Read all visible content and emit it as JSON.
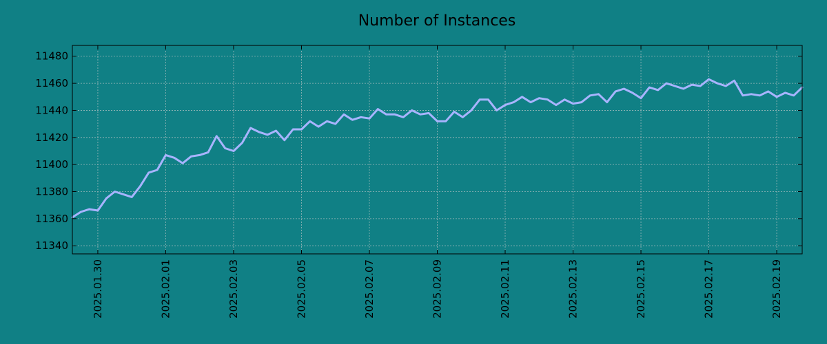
{
  "chart_data": {
    "type": "line",
    "title": "Number of Instances",
    "xlabel": "",
    "ylabel": "",
    "x_ticks": [
      "2025.01.30",
      "2025.02.01",
      "2025.02.03",
      "2025.02.05",
      "2025.02.07",
      "2025.02.09",
      "2025.02.11",
      "2025.02.13",
      "2025.02.15",
      "2025.02.17",
      "2025.02.19"
    ],
    "y_ticks": [
      11340,
      11360,
      11380,
      11400,
      11420,
      11440,
      11460,
      11480
    ],
    "xlim": [
      "2025.01.29 06:00",
      "2025.02.19 18:00"
    ],
    "ylim": [
      11334,
      11488
    ],
    "grid": true,
    "colors": {
      "background": "#108085",
      "line": "#a8b4ff"
    },
    "series": [
      {
        "x": [
          "2025.01.29 06:00",
          "2025.01.29 12:00",
          "2025.01.29 18:00",
          "2025.01.30 00:00",
          "2025.01.30 06:00",
          "2025.01.30 12:00",
          "2025.01.30 18:00",
          "2025.01.31 00:00",
          "2025.01.31 06:00",
          "2025.01.31 12:00",
          "2025.01.31 18:00",
          "2025.02.01 00:00",
          "2025.02.01 06:00",
          "2025.02.01 12:00",
          "2025.02.01 18:00",
          "2025.02.02 00:00",
          "2025.02.02 06:00",
          "2025.02.02 12:00",
          "2025.02.02 18:00",
          "2025.02.03 00:00",
          "2025.02.03 06:00",
          "2025.02.03 12:00",
          "2025.02.03 18:00",
          "2025.02.04 00:00",
          "2025.02.04 06:00",
          "2025.02.04 12:00",
          "2025.02.04 18:00",
          "2025.02.05 00:00",
          "2025.02.05 06:00",
          "2025.02.05 12:00",
          "2025.02.05 18:00",
          "2025.02.06 00:00",
          "2025.02.06 06:00",
          "2025.02.06 12:00",
          "2025.02.06 18:00",
          "2025.02.07 00:00",
          "2025.02.07 06:00",
          "2025.02.07 12:00",
          "2025.02.07 18:00",
          "2025.02.08 00:00",
          "2025.02.08 06:00",
          "2025.02.08 12:00",
          "2025.02.08 18:00",
          "2025.02.09 00:00",
          "2025.02.09 06:00",
          "2025.02.09 12:00",
          "2025.02.09 18:00",
          "2025.02.10 00:00",
          "2025.02.10 06:00",
          "2025.02.10 12:00",
          "2025.02.10 18:00",
          "2025.02.11 00:00",
          "2025.02.11 06:00",
          "2025.02.11 12:00",
          "2025.02.11 18:00",
          "2025.02.12 00:00",
          "2025.02.12 06:00",
          "2025.02.12 12:00",
          "2025.02.12 18:00",
          "2025.02.13 00:00",
          "2025.02.13 06:00",
          "2025.02.13 12:00",
          "2025.02.13 18:00",
          "2025.02.14 00:00",
          "2025.02.14 06:00",
          "2025.02.14 12:00",
          "2025.02.14 18:00",
          "2025.02.15 00:00",
          "2025.02.15 06:00",
          "2025.02.15 12:00",
          "2025.02.15 18:00",
          "2025.02.16 00:00",
          "2025.02.16 06:00",
          "2025.02.16 12:00",
          "2025.02.16 18:00",
          "2025.02.17 00:00",
          "2025.02.17 06:00",
          "2025.02.17 12:00",
          "2025.02.17 18:00",
          "2025.02.18 00:00",
          "2025.02.18 06:00",
          "2025.02.18 12:00",
          "2025.02.18 18:00",
          "2025.02.19 00:00",
          "2025.02.19 06:00",
          "2025.02.19 12:00",
          "2025.02.19 18:00"
        ],
        "y": [
          11361,
          11365,
          11367,
          11366,
          11375,
          11380,
          11378,
          11376,
          11384,
          11394,
          11396,
          11407,
          11405,
          11401,
          11406,
          11407,
          11409,
          11421,
          11412,
          11410,
          11416,
          11427,
          11424,
          11422,
          11425,
          11418,
          11426,
          11426,
          11432,
          11428,
          11432,
          11430,
          11437,
          11433,
          11435,
          11434,
          11441,
          11437,
          11437,
          11435,
          11440,
          11437,
          11438,
          11432,
          11432,
          11439,
          11435,
          11440,
          11448,
          11448,
          11440,
          11444,
          11446,
          11450,
          11446,
          11449,
          11448,
          11444,
          11448,
          11445,
          11446,
          11451,
          11452,
          11446,
          11454,
          11456,
          11453,
          11449,
          11457,
          11455,
          11460,
          11458,
          11456,
          11459,
          11458,
          11463,
          11460,
          11458,
          11462,
          11451,
          11452,
          11451,
          11454,
          11450,
          11453,
          11451,
          11457
        ]
      }
    ]
  }
}
